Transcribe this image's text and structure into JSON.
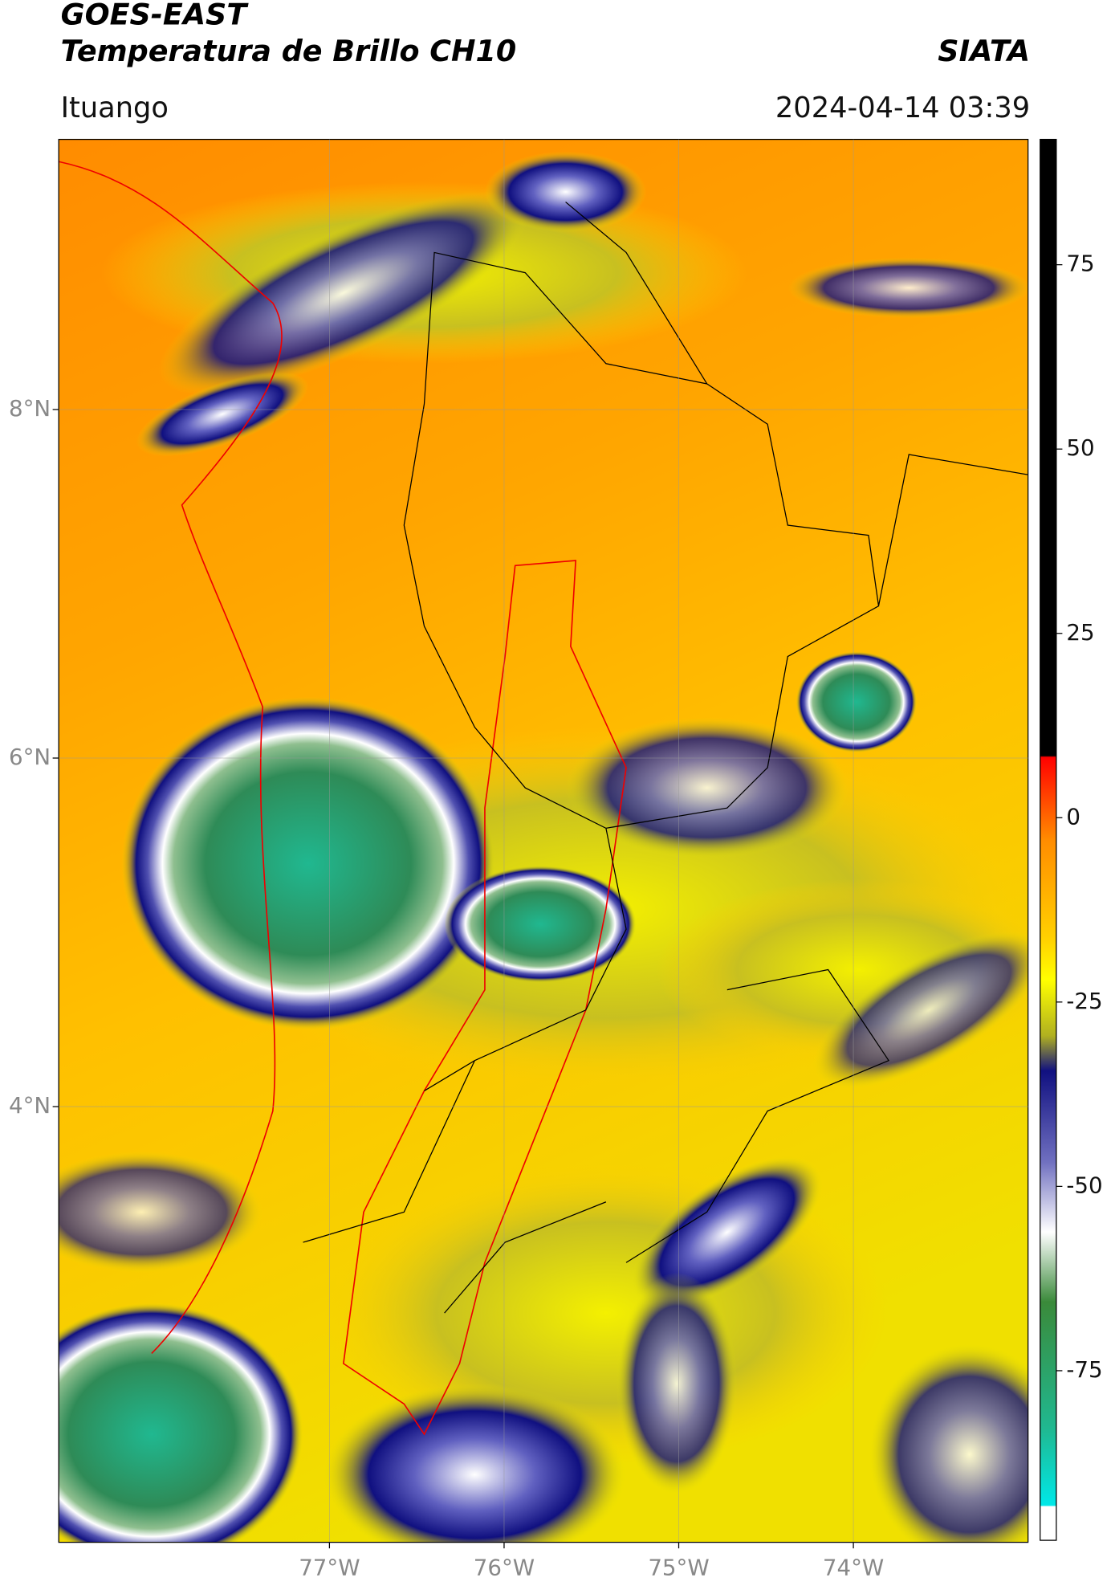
{
  "header": {
    "title": "GOES-EAST",
    "subtitle": "Temperatura de Brillo CH10",
    "source": "SIATA",
    "region": "Ituango",
    "timestamp": "2024-04-14 03:39"
  },
  "map": {
    "xlim": [
      -78.55,
      -73.0
    ],
    "ylim": [
      1.5,
      9.55
    ],
    "xticks": [
      {
        "value": -77,
        "label": "77°W"
      },
      {
        "value": -76,
        "label": "76°W"
      },
      {
        "value": -75,
        "label": "75°W"
      },
      {
        "value": -74,
        "label": "74°W"
      }
    ],
    "yticks": [
      {
        "value": 8,
        "label": "8°N"
      },
      {
        "value": 6,
        "label": "6°N"
      },
      {
        "value": 4,
        "label": "4°N"
      }
    ],
    "grid": true
  },
  "colorbar": {
    "lim": [
      -98,
      92
    ],
    "ticks": [
      75,
      50,
      25,
      0,
      -25,
      -50,
      -75
    ]
  }
}
